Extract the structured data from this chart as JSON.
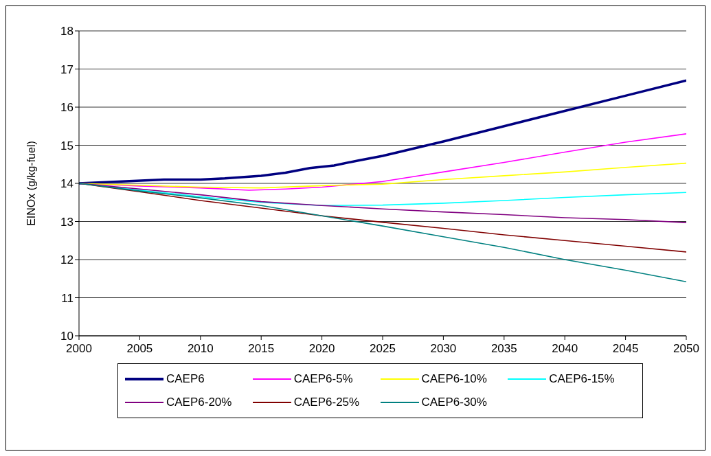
{
  "chart_data": {
    "type": "line",
    "ylabel": "EINOx (g/kg-fuel)",
    "xlim": [
      2000,
      2050
    ],
    "xticks": [
      2000,
      2005,
      2010,
      2015,
      2020,
      2025,
      2030,
      2035,
      2040,
      2045,
      2050
    ],
    "ylim": [
      10,
      18
    ],
    "yticks": [
      10,
      11,
      12,
      13,
      14,
      15,
      16,
      17,
      18
    ],
    "grid": "y",
    "legend": "bottom",
    "marker": "none",
    "line_style": "solid",
    "series": [
      {
        "name": "CAEP6",
        "color": "#000080",
        "x": [
          2000,
          2007,
          2010,
          2012,
          2015,
          2017,
          2019,
          2021,
          2023,
          2025,
          2030,
          2035,
          2040,
          2045,
          2050
        ],
        "values": [
          14.0,
          14.1,
          14.1,
          14.13,
          14.2,
          14.28,
          14.4,
          14.47,
          14.6,
          14.72,
          15.1,
          15.5,
          15.9,
          16.3,
          16.7
        ]
      },
      {
        "name": "CAEP6-5%",
        "color": "#ff00ff",
        "x": [
          2000,
          2005,
          2010,
          2014,
          2017,
          2020,
          2025,
          2030,
          2035,
          2040,
          2045,
          2050
        ],
        "values": [
          14.0,
          13.93,
          13.88,
          13.82,
          13.85,
          13.9,
          14.05,
          14.3,
          14.55,
          14.82,
          15.08,
          15.3
        ]
      },
      {
        "name": "CAEP6-10%",
        "color": "#ffff00",
        "x": [
          2000,
          2005,
          2010,
          2015,
          2020,
          2025,
          2030,
          2035,
          2040,
          2045,
          2050
        ],
        "values": [
          14.0,
          13.95,
          13.9,
          13.88,
          13.94,
          13.98,
          14.1,
          14.2,
          14.3,
          14.42,
          14.53
        ]
      },
      {
        "name": "CAEP6-15%",
        "color": "#00ffff",
        "x": [
          2000,
          2005,
          2010,
          2015,
          2020,
          2025,
          2030,
          2035,
          2040,
          2045,
          2050
        ],
        "values": [
          14.0,
          13.82,
          13.65,
          13.5,
          13.42,
          13.43,
          13.48,
          13.55,
          13.63,
          13.7,
          13.76
        ]
      },
      {
        "name": "CAEP6-20%",
        "color": "#800080",
        "x": [
          2000,
          2005,
          2010,
          2015,
          2020,
          2025,
          2030,
          2035,
          2040,
          2045,
          2050
        ],
        "values": [
          14.0,
          13.85,
          13.7,
          13.52,
          13.42,
          13.33,
          13.25,
          13.18,
          13.1,
          13.05,
          12.97
        ]
      },
      {
        "name": "CAEP6-25%",
        "color": "#800000",
        "x": [
          2000,
          2005,
          2010,
          2015,
          2020,
          2025,
          2030,
          2035,
          2040,
          2045,
          2050
        ],
        "values": [
          14.0,
          13.78,
          13.55,
          13.35,
          13.15,
          12.98,
          12.82,
          12.65,
          12.5,
          12.35,
          12.2
        ]
      },
      {
        "name": "CAEP6-30%",
        "color": "#008080",
        "x": [
          2000,
          2005,
          2010,
          2015,
          2020,
          2025,
          2030,
          2035,
          2040,
          2045,
          2050
        ],
        "values": [
          14.0,
          13.8,
          13.62,
          13.42,
          13.15,
          12.88,
          12.6,
          12.32,
          12.0,
          11.72,
          11.42
        ]
      }
    ]
  }
}
